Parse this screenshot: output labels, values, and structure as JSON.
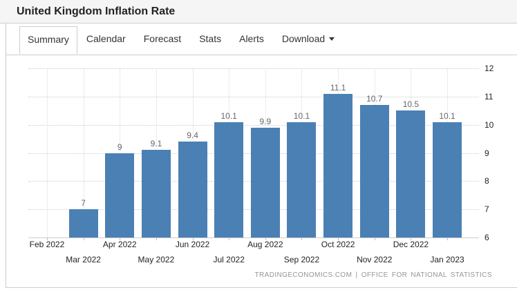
{
  "header": {
    "title": "United Kingdom Inflation Rate"
  },
  "tabs": [
    {
      "label": "Summary",
      "active": true
    },
    {
      "label": "Calendar",
      "active": false
    },
    {
      "label": "Forecast",
      "active": false
    },
    {
      "label": "Stats",
      "active": false
    },
    {
      "label": "Alerts",
      "active": false
    },
    {
      "label": "Download",
      "active": false,
      "caret": true
    }
  ],
  "chart_data": {
    "type": "bar",
    "title": "United Kingdom Inflation Rate",
    "categories": [
      "Feb 2022",
      "Mar 2022",
      "Apr 2022",
      "May 2022",
      "Jun 2022",
      "Jul 2022",
      "Aug 2022",
      "Sep 2022",
      "Oct 2022",
      "Nov 2022",
      "Dec 2022",
      "Jan 2023"
    ],
    "values": [
      null,
      7,
      9,
      9.1,
      9.4,
      10.1,
      9.9,
      10.1,
      11.1,
      10.7,
      10.5,
      10.1
    ],
    "value_labels": [
      "",
      "7",
      "9",
      "9.1",
      "9.4",
      "10.1",
      "9.9",
      "10.1",
      "11.1",
      "10.7",
      "10.5",
      "10.1"
    ],
    "xlabel": "",
    "ylabel": "",
    "ylim": [
      6,
      12
    ],
    "yticks": [
      6,
      7,
      8,
      9,
      10,
      11,
      12
    ],
    "grid": true,
    "legend": "none",
    "bar_color": "#4a80b4",
    "grid_color": "#cccccc",
    "label_color": "#666666",
    "axis_text_color": "#222222"
  },
  "footer": {
    "source": "TRADINGECONOMICS.COM",
    "separator": "|",
    "provider": "OFFICE  FOR  NATIONAL  STATISTICS"
  }
}
